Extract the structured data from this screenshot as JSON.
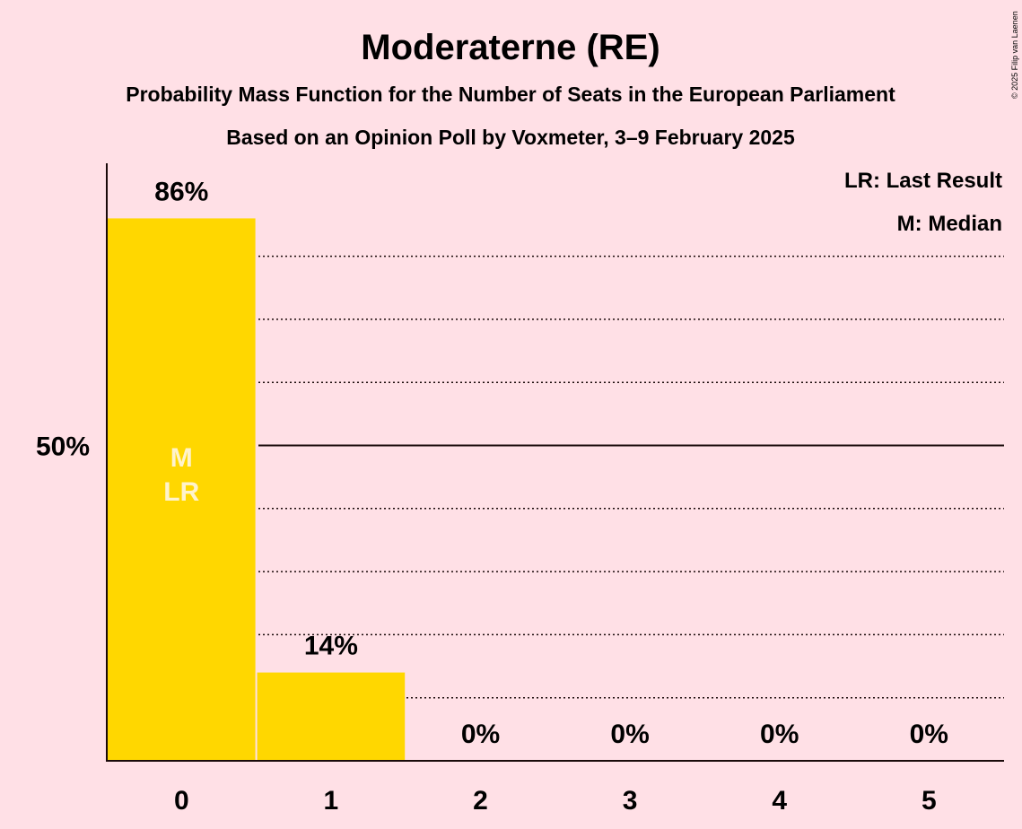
{
  "chart_data": {
    "type": "bar",
    "title": "Moderaterne (RE)",
    "subtitle_1": "Probability Mass Function for the Number of Seats in the European Parliament",
    "subtitle_2": "Based on an Opinion Poll by Voxmeter, 3–9 February 2025",
    "copyright": "© 2025 Filip van Laenen",
    "categories": [
      "0",
      "1",
      "2",
      "3",
      "4",
      "5"
    ],
    "values": [
      86,
      14,
      0,
      0,
      0,
      0
    ],
    "value_labels": [
      "86%",
      "14%",
      "0%",
      "0%",
      "0%",
      "0%"
    ],
    "ylim": [
      0,
      100
    ],
    "yticks": [
      {
        "value": 50,
        "label": "50%"
      }
    ],
    "grid_values": [
      10,
      20,
      30,
      40,
      60,
      70,
      80
    ],
    "solid_line_value": 50,
    "bar_color": "#ffd700",
    "median_marker": {
      "category": "0",
      "label": "M"
    },
    "last_result_marker": {
      "category": "0",
      "label": "LR"
    },
    "legend": [
      "LR: Last Result",
      "M: Median"
    ],
    "legend_position": "top-right"
  }
}
